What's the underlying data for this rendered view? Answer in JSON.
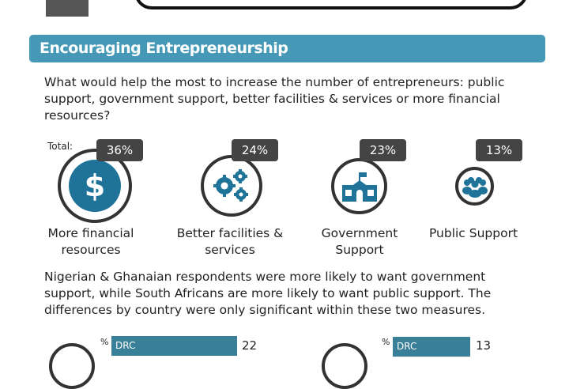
{
  "section": {
    "title": "Encouraging Entrepreneurship"
  },
  "question": "What would help the most to increase the number of entrepreneurs: public support, government support, better facilities & services or more financial resources?",
  "total_label": "Total:",
  "options": [
    {
      "label": "More financial resources",
      "percent": "36%",
      "icon": "dollar-icon"
    },
    {
      "label": "Better facilities & services",
      "percent": "24%",
      "icon": "gears-icon"
    },
    {
      "label": "Government Support",
      "percent": "23%",
      "icon": "school-building-icon"
    },
    {
      "label": "Public Support",
      "percent": "13%",
      "icon": "people-group-icon"
    }
  ],
  "finding": "Nigerian & Ghanaian respondents were more likely to want government support, while South Africans are more likely to want public support. The differences by country were only significant within these two measures.",
  "country_charts": [
    {
      "unit": "%",
      "bars": [
        {
          "country": "DRC",
          "value": "22"
        }
      ]
    },
    {
      "unit": "%",
      "bars": [
        {
          "country": "DRC",
          "value": "13"
        }
      ]
    }
  ],
  "colors": {
    "accent": "#4599b6",
    "icon": "#1f7399",
    "bar": "#3a7f98",
    "badge": "#444444"
  }
}
